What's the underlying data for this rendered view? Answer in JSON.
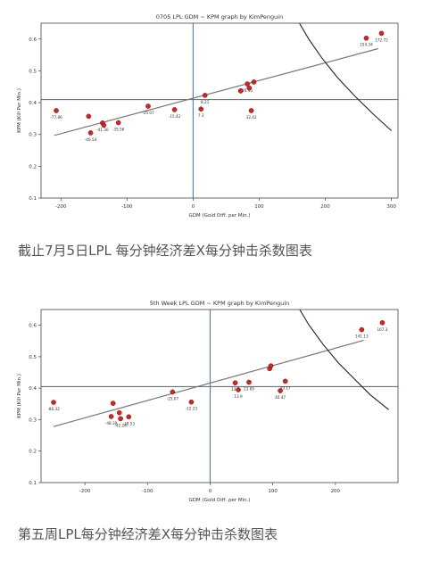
{
  "captions": [
    "截止7月5日LPL 每分钟经济差X每分钟击杀数图表",
    "第五周LPL每分钟经济差X每分钟击杀数图表"
  ],
  "chart_data": [
    {
      "type": "scatter",
      "title": "0705 LPL GDM ~ KPM graph by KimPenguin",
      "xlabel": "GDM (Gold Diff. per Min.)",
      "ylabel": "KPM (Kill Per Min.)",
      "xlim": [
        -230,
        310
      ],
      "ylim": [
        0.1,
        0.65
      ],
      "xticks": [
        -200,
        -100,
        0,
        100,
        200,
        300
      ],
      "yticks": [
        0.1,
        0.2,
        0.3,
        0.4,
        0.5,
        0.6
      ],
      "reference_lines": {
        "x": 0,
        "y": 0.41
      },
      "regression": {
        "from": [
          -210,
          0.297
        ],
        "to": [
          280,
          0.57
        ]
      },
      "curve": [
        [
          158,
          0.66
        ],
        [
          175,
          0.6
        ],
        [
          195,
          0.54
        ],
        [
          218,
          0.48
        ],
        [
          245,
          0.42
        ],
        [
          272,
          0.365
        ],
        [
          300,
          0.312
        ]
      ],
      "points": [
        {
          "x": -207,
          "y": 0.375,
          "label": "-77.86"
        },
        {
          "x": -158,
          "y": 0.357,
          "label": ""
        },
        {
          "x": -155,
          "y": 0.305,
          "label": "-46.54"
        },
        {
          "x": -137,
          "y": 0.336,
          "label": "-41.36"
        },
        {
          "x": -135,
          "y": 0.329,
          "label": ""
        },
        {
          "x": -113,
          "y": 0.337,
          "label": "-35.56"
        },
        {
          "x": -68,
          "y": 0.389,
          "label": "-25.07"
        },
        {
          "x": -28,
          "y": 0.378,
          "label": "-15.42"
        },
        {
          "x": 12,
          "y": 0.38,
          "label": "7.3"
        },
        {
          "x": 18,
          "y": 0.423,
          "label": "8.21"
        },
        {
          "x": 72,
          "y": 0.437,
          "label": ""
        },
        {
          "x": 82,
          "y": 0.459,
          "label": "26.15"
        },
        {
          "x": 85,
          "y": 0.446,
          "label": ""
        },
        {
          "x": 88,
          "y": 0.375,
          "label": "32.42"
        },
        {
          "x": 92,
          "y": 0.465,
          "label": ""
        },
        {
          "x": 262,
          "y": 0.603,
          "label": "154.34"
        },
        {
          "x": 285,
          "y": 0.618,
          "label": "172.72"
        }
      ]
    },
    {
      "type": "scatter",
      "title": "5th Week LPL GDM ~ KPM graph by KimPenguin",
      "xlabel": "GDM (Gold Diff. per Min.)",
      "ylabel": "KPM (Kill Per Min.)",
      "xlim": [
        -270,
        300
      ],
      "ylim": [
        0.1,
        0.65
      ],
      "xticks": [
        -200,
        -100,
        0,
        100,
        200
      ],
      "yticks": [
        0.1,
        0.2,
        0.3,
        0.4,
        0.5,
        0.6
      ],
      "reference_lines": {
        "x": 0,
        "y": 0.405
      },
      "regression": {
        "from": [
          -250,
          0.278
        ],
        "to": [
          245,
          0.552
        ]
      },
      "curve": [
        [
          140,
          0.66
        ],
        [
          158,
          0.6
        ],
        [
          180,
          0.54
        ],
        [
          205,
          0.48
        ],
        [
          230,
          0.43
        ],
        [
          255,
          0.38
        ],
        [
          285,
          0.332
        ]
      ],
      "points": [
        {
          "x": -250,
          "y": 0.355,
          "label": "-86.32"
        },
        {
          "x": -158,
          "y": 0.31,
          "label": "-48.39"
        },
        {
          "x": -155,
          "y": 0.352,
          "label": ""
        },
        {
          "x": -145,
          "y": 0.322,
          "label": ""
        },
        {
          "x": -143,
          "y": 0.303,
          "label": "-42.28"
        },
        {
          "x": -130,
          "y": 0.309,
          "label": "-38.53"
        },
        {
          "x": -60,
          "y": 0.388,
          "label": "-25.07"
        },
        {
          "x": -30,
          "y": 0.356,
          "label": "-12.23"
        },
        {
          "x": 40,
          "y": 0.417,
          "label": "13.9"
        },
        {
          "x": 45,
          "y": 0.395,
          "label": "13.9"
        },
        {
          "x": 62,
          "y": 0.419,
          "label": "23.69"
        },
        {
          "x": 95,
          "y": 0.462,
          "label": ""
        },
        {
          "x": 97,
          "y": 0.471,
          "label": ""
        },
        {
          "x": 112,
          "y": 0.392,
          "label": "40.47"
        },
        {
          "x": 120,
          "y": 0.422,
          "label": "49.17"
        },
        {
          "x": 242,
          "y": 0.586,
          "label": "141.13"
        },
        {
          "x": 275,
          "y": 0.608,
          "label": "167.3"
        }
      ]
    }
  ]
}
